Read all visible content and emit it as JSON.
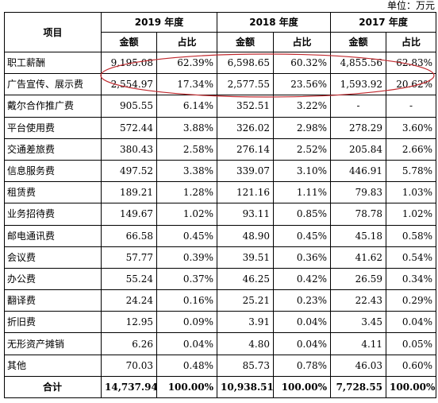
{
  "unit_label": "单位：万元",
  "header": {
    "item_label": "项目",
    "years": [
      "2019 年度",
      "2018 年度",
      "2017 年度"
    ],
    "amount_label": "金额",
    "ratio_label": "占比"
  },
  "rows": [
    {
      "item": "职工薪酬",
      "v2019": "9,195.08",
      "p2019": "62.39%",
      "v2018": "6,598.65",
      "p2018": "60.32%",
      "v2017": "4,855.56",
      "p2017": "62.83%"
    },
    {
      "item": "广告宣传、展示费",
      "v2019": "2,554.97",
      "p2019": "17.34%",
      "v2018": "2,577.55",
      "p2018": "23.56%",
      "v2017": "1,593.92",
      "p2017": "20.62%"
    },
    {
      "item": "戴尔合作推广费",
      "v2019": "905.55",
      "p2019": "6.14%",
      "v2018": "352.51",
      "p2018": "3.22%",
      "v2017": "-",
      "p2017": "-"
    },
    {
      "item": "平台使用费",
      "v2019": "572.44",
      "p2019": "3.88%",
      "v2018": "326.02",
      "p2018": "2.98%",
      "v2017": "278.29",
      "p2017": "3.60%"
    },
    {
      "item": "交通差旅费",
      "v2019": "380.43",
      "p2019": "2.58%",
      "v2018": "276.14",
      "p2018": "2.52%",
      "v2017": "205.84",
      "p2017": "2.66%"
    },
    {
      "item": "信息服务费",
      "v2019": "497.52",
      "p2019": "3.38%",
      "v2018": "339.07",
      "p2018": "3.10%",
      "v2017": "446.91",
      "p2017": "5.78%"
    },
    {
      "item": "租赁费",
      "v2019": "189.21",
      "p2019": "1.28%",
      "v2018": "121.16",
      "p2018": "1.11%",
      "v2017": "79.83",
      "p2017": "1.03%"
    },
    {
      "item": "业务招待费",
      "v2019": "149.67",
      "p2019": "1.02%",
      "v2018": "93.11",
      "p2018": "0.85%",
      "v2017": "78.78",
      "p2017": "1.02%"
    },
    {
      "item": "邮电通讯费",
      "v2019": "66.58",
      "p2019": "0.45%",
      "v2018": "48.90",
      "p2018": "0.45%",
      "v2017": "45.18",
      "p2017": "0.58%"
    },
    {
      "item": "会议费",
      "v2019": "57.77",
      "p2019": "0.39%",
      "v2018": "39.51",
      "p2018": "0.36%",
      "v2017": "41.62",
      "p2017": "0.54%"
    },
    {
      "item": "办公费",
      "v2019": "55.24",
      "p2019": "0.37%",
      "v2018": "46.25",
      "p2018": "0.42%",
      "v2017": "26.59",
      "p2017": "0.34%"
    },
    {
      "item": "翻译费",
      "v2019": "24.24",
      "p2019": "0.16%",
      "v2018": "25.21",
      "p2018": "0.23%",
      "v2017": "22.43",
      "p2017": "0.29%"
    },
    {
      "item": "折旧费",
      "v2019": "12.95",
      "p2019": "0.09%",
      "v2018": "3.91",
      "p2018": "0.04%",
      "v2017": "3.45",
      "p2017": "0.04%"
    },
    {
      "item": "无形资产摊销",
      "v2019": "6.26",
      "p2019": "0.04%",
      "v2018": "4.80",
      "p2018": "0.04%",
      "v2017": "4.11",
      "p2017": "0.05%"
    },
    {
      "item": "其他",
      "v2019": "70.03",
      "p2019": "0.48%",
      "v2018": "85.73",
      "p2018": "0.78%",
      "v2017": "46.03",
      "p2017": "0.60%"
    }
  ],
  "total": {
    "item": "合计",
    "v2019": "14,737.94",
    "p2019": "100.00%",
    "v2018": "10,938.51",
    "p2018": "100.00%",
    "v2017": "7,728.55",
    "p2017": "100.00%"
  },
  "annotation": {
    "color": "#c0282d",
    "highlighted_rows": [
      "职工薪酬",
      "广告宣传、展示费"
    ]
  }
}
